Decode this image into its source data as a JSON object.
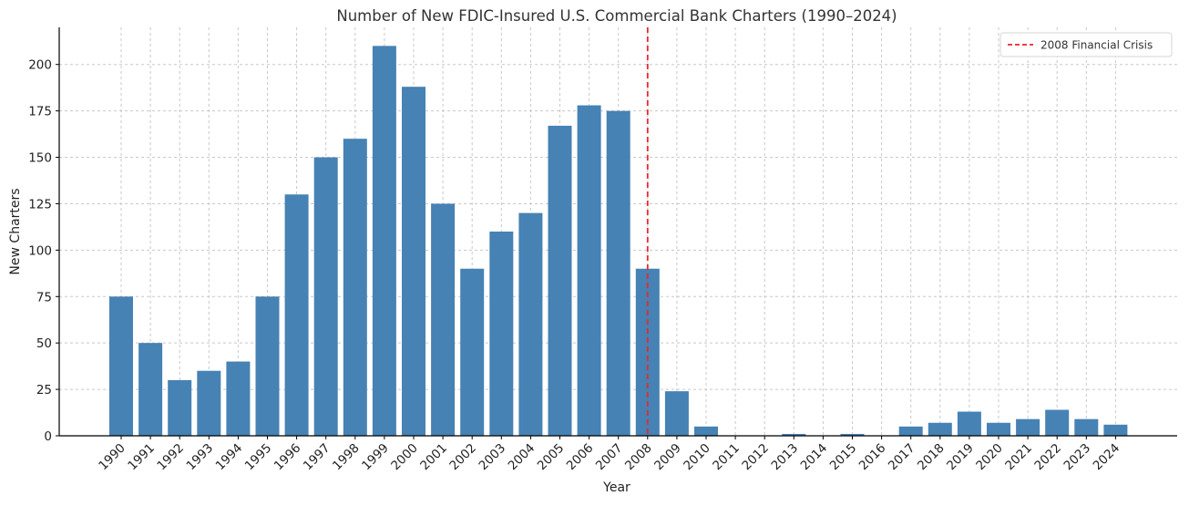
{
  "chart_data": {
    "type": "bar",
    "title": "Number of New FDIC-Insured U.S. Commercial Bank Charters (1990–2024)",
    "xlabel": "Year",
    "ylabel": "New Charters",
    "categories": [
      "1990",
      "1991",
      "1992",
      "1993",
      "1994",
      "1995",
      "1996",
      "1997",
      "1998",
      "1999",
      "2000",
      "2001",
      "2002",
      "2003",
      "2004",
      "2005",
      "2006",
      "2007",
      "2008",
      "2009",
      "2010",
      "2011",
      "2012",
      "2013",
      "2014",
      "2015",
      "2016",
      "2017",
      "2018",
      "2019",
      "2020",
      "2021",
      "2022",
      "2023",
      "2024"
    ],
    "values": [
      75,
      50,
      30,
      35,
      40,
      75,
      130,
      150,
      160,
      210,
      188,
      125,
      90,
      110,
      120,
      167,
      178,
      175,
      90,
      24,
      5,
      0,
      0,
      1,
      0,
      1,
      0,
      5,
      7,
      13,
      7,
      9,
      14,
      9,
      6
    ],
    "ylim": [
      0,
      220
    ],
    "yticks": [
      0,
      25,
      50,
      75,
      100,
      125,
      150,
      175,
      200
    ],
    "grid": true,
    "bar_color": "#4682b4",
    "reference_line": {
      "x": "2008",
      "label": "2008 Financial Crisis",
      "color": "#e8282b",
      "style": "dashed"
    },
    "legend": {
      "position": "top-right",
      "entries": [
        "2008 Financial Crisis"
      ]
    }
  }
}
